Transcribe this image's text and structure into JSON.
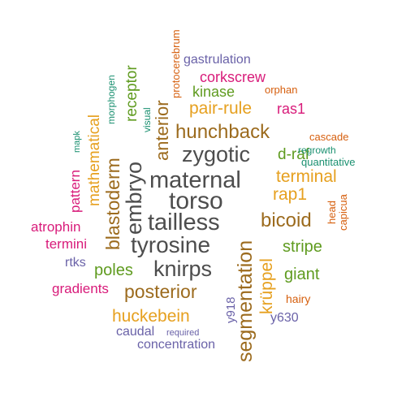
{
  "palette": {
    "gray": "#4d4d4d",
    "brown": "#9c6b1e",
    "orange": "#e6a01f",
    "green": "#5f9b1f",
    "magenta": "#d81b7a",
    "purple": "#6a62a8",
    "teal": "#1a9070",
    "rust": "#d65f0e"
  },
  "words": [
    {
      "text": "torso",
      "color": "#4d4d4d"
    },
    {
      "text": "maternal",
      "color": "#4d4d4d"
    },
    {
      "text": "tailless",
      "color": "#4d4d4d"
    },
    {
      "text": "tyrosine",
      "color": "#4d4d4d"
    },
    {
      "text": "zygotic",
      "color": "#4d4d4d"
    },
    {
      "text": "knirps",
      "color": "#4d4d4d"
    },
    {
      "text": "embryo",
      "color": "#4d4d4d"
    },
    {
      "text": "segmentation",
      "color": "#9c6b1e"
    },
    {
      "text": "hunchback",
      "color": "#9c6b1e"
    },
    {
      "text": "bicoid",
      "color": "#9c6b1e"
    },
    {
      "text": "blastoderm",
      "color": "#9c6b1e"
    },
    {
      "text": "posterior",
      "color": "#9c6b1e"
    },
    {
      "text": "anterior",
      "color": "#9c6b1e"
    },
    {
      "text": "krüppel",
      "color": "#e6a01f"
    },
    {
      "text": "pair-rule",
      "color": "#e6a01f"
    },
    {
      "text": "terminal",
      "color": "#e6a01f"
    },
    {
      "text": "rap1",
      "color": "#e6a01f"
    },
    {
      "text": "huckebein",
      "color": "#e6a01f"
    },
    {
      "text": "mathematical",
      "color": "#e6a01f"
    },
    {
      "text": "stripe",
      "color": "#5f9b1f"
    },
    {
      "text": "giant",
      "color": "#5f9b1f"
    },
    {
      "text": "poles",
      "color": "#5f9b1f"
    },
    {
      "text": "receptor",
      "color": "#5f9b1f"
    },
    {
      "text": "d-raf",
      "color": "#5f9b1f"
    },
    {
      "text": "kinase",
      "color": "#5f9b1f"
    },
    {
      "text": "corkscrew",
      "color": "#d81b7a"
    },
    {
      "text": "ras1",
      "color": "#d81b7a"
    },
    {
      "text": "atrophin",
      "color": "#d81b7a"
    },
    {
      "text": "termini",
      "color": "#d81b7a"
    },
    {
      "text": "gradients",
      "color": "#d81b7a"
    },
    {
      "text": "pattern",
      "color": "#d81b7a"
    },
    {
      "text": "gastrulation",
      "color": "#6a62a8"
    },
    {
      "text": "rtks",
      "color": "#6a62a8"
    },
    {
      "text": "caudal",
      "color": "#6a62a8"
    },
    {
      "text": "concentration",
      "color": "#6a62a8"
    },
    {
      "text": "y630",
      "color": "#6a62a8"
    },
    {
      "text": "y918",
      "color": "#6a62a8"
    },
    {
      "text": "required",
      "color": "#6a62a8"
    },
    {
      "text": "morphogen",
      "color": "#1a9070"
    },
    {
      "text": "visual",
      "color": "#1a9070"
    },
    {
      "text": "mapk",
      "color": "#1a9070"
    },
    {
      "text": "regrowth",
      "color": "#1a9070"
    },
    {
      "text": "quantitative",
      "color": "#1a9070"
    },
    {
      "text": "protocerebrum",
      "color": "#d65f0e"
    },
    {
      "text": "orphan",
      "color": "#d65f0e"
    },
    {
      "text": "cascade",
      "color": "#d65f0e"
    },
    {
      "text": "head",
      "color": "#d65f0e"
    },
    {
      "text": "capicua",
      "color": "#d65f0e"
    },
    {
      "text": "hairy",
      "color": "#d65f0e"
    }
  ]
}
